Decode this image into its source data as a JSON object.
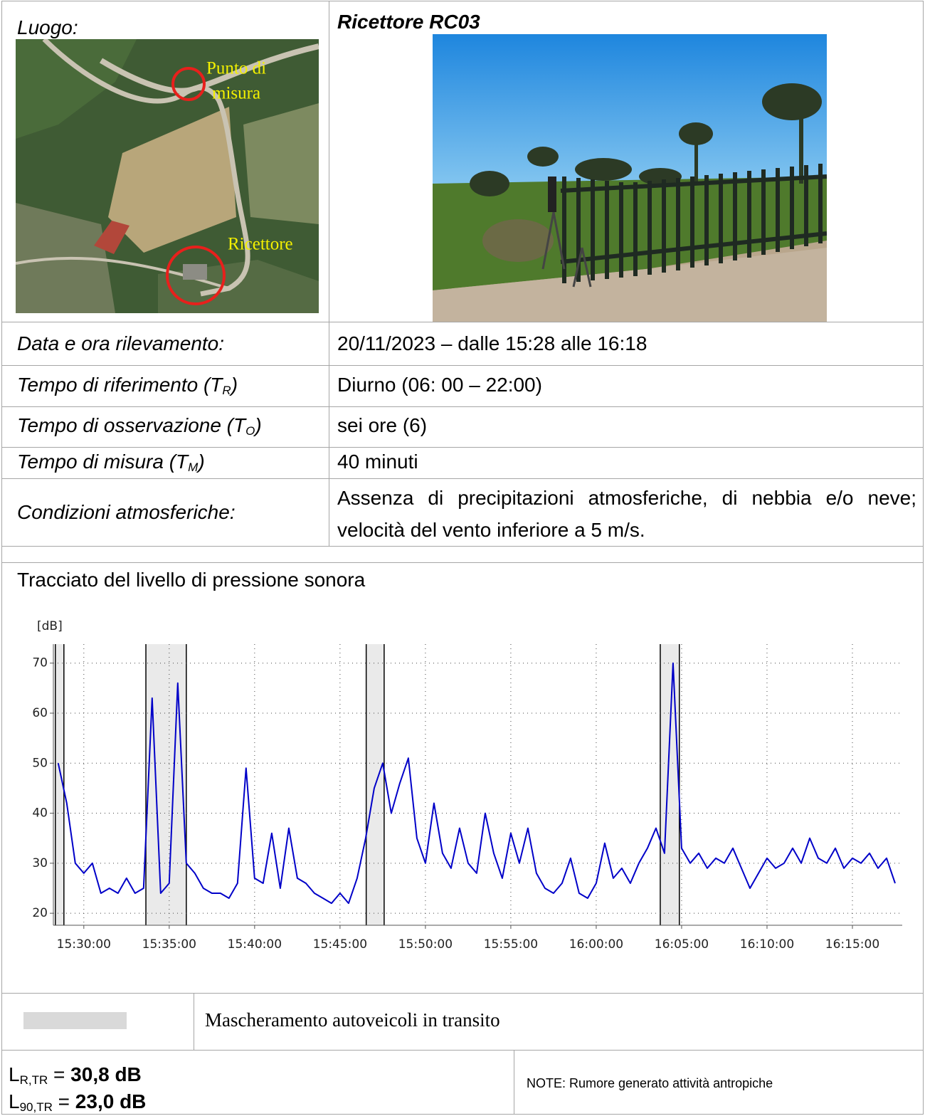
{
  "location": {
    "label": "Luogo:",
    "map_labels": {
      "measure_point": [
        "Punto di",
        "misura"
      ],
      "receiver": "Ricettore"
    }
  },
  "receiver": {
    "title": "Ricettore RC03"
  },
  "info_rows": [
    {
      "label": {
        "text": "Data e ora rilevamento:"
      },
      "value": "20/11/2023 – dalle 15:28 alle 16:18"
    },
    {
      "label": {
        "text": "Tempo di riferimento (T",
        "subscript": "R",
        "close": ")"
      },
      "value": "Diurno (06: 00 – 22:00)"
    },
    {
      "label": {
        "text": "Tempo di osservazione (T",
        "subscript": "O",
        "close": ")"
      },
      "value": "sei ore (6)"
    },
    {
      "label": {
        "text": "Tempo di misura (T",
        "subscript": "M",
        "close": ")"
      },
      "value": "40 minuti"
    },
    {
      "label": {
        "text": "Condizioni atmosferiche:"
      },
      "value": "Assenza di precipitazioni atmosferiche, di nebbia e/o neve; velocità del vento inferiore a 5 m/s."
    }
  ],
  "chart_heading": "Tracciato del livello di pressione sonora",
  "chart_data": {
    "type": "line",
    "y_label": "[dB]",
    "color": "#0000c8",
    "grid": true,
    "x": [
      55710,
      55740,
      55770,
      55800,
      55830,
      55860,
      55890,
      55920,
      55950,
      55980,
      56010,
      56040,
      56070,
      56100,
      56130,
      56160,
      56190,
      56220,
      56250,
      56280,
      56310,
      56340,
      56370,
      56400,
      56430,
      56460,
      56490,
      56520,
      56550,
      56580,
      56610,
      56640,
      56670,
      56700,
      56730,
      56760,
      56790,
      56820,
      56850,
      56880,
      56910,
      56940,
      56970,
      57000,
      57030,
      57060,
      57090,
      57120,
      57150,
      57180,
      57210,
      57240,
      57270,
      57300,
      57330,
      57360,
      57390,
      57420,
      57450,
      57480,
      57510,
      57540,
      57570,
      57600,
      57630,
      57660,
      57690,
      57720,
      57750,
      57780,
      57810,
      57840,
      57870,
      57900,
      57930,
      57960,
      57990,
      58020,
      58050,
      58080,
      58110,
      58140,
      58170,
      58200,
      58230,
      58260,
      58290,
      58320,
      58350,
      58380,
      58410,
      58440,
      58470,
      58500,
      58530,
      58560,
      58590,
      58620,
      58650
    ],
    "values": [
      50,
      42,
      30,
      28,
      30,
      24,
      25,
      24,
      27,
      24,
      25,
      63,
      24,
      26,
      66,
      30,
      28,
      25,
      24,
      24,
      23,
      26,
      49,
      27,
      26,
      36,
      25,
      37,
      27,
      26,
      24,
      23,
      22,
      24,
      22,
      27,
      35,
      45,
      50,
      40,
      46,
      51,
      35,
      30,
      42,
      32,
      29,
      37,
      30,
      28,
      40,
      32,
      27,
      36,
      30,
      37,
      28,
      25,
      24,
      26,
      31,
      24,
      23,
      26,
      34,
      27,
      29,
      26,
      30,
      33,
      37,
      32,
      70,
      33,
      30,
      32,
      29,
      31,
      30,
      33,
      29,
      25,
      28,
      31,
      29,
      30,
      33,
      30,
      35,
      31,
      30,
      33,
      29,
      31,
      30,
      32,
      29,
      31,
      26
    ],
    "xlim": [
      55693,
      58675
    ],
    "ylim": [
      17.6,
      73.8
    ],
    "xticks": [
      {
        "value": 55800,
        "label": "15:30:00"
      },
      {
        "value": 56100,
        "label": "15:35:00"
      },
      {
        "value": 56400,
        "label": "15:40:00"
      },
      {
        "value": 56700,
        "label": "15:45:00"
      },
      {
        "value": 57000,
        "label": "15:50:00"
      },
      {
        "value": 57300,
        "label": "15:55:00"
      },
      {
        "value": 57600,
        "label": "16:00:00"
      },
      {
        "value": 57900,
        "label": "16:05:00"
      },
      {
        "value": 58200,
        "label": "16:10:00"
      },
      {
        "value": 58500,
        "label": "16:15:00"
      }
    ],
    "yticks": [
      20,
      30,
      40,
      50,
      60,
      70
    ],
    "masks": [
      [
        55700,
        55730
      ],
      [
        56018,
        56160
      ],
      [
        56792,
        56855
      ],
      [
        57825,
        57892
      ]
    ],
    "mask_color": "#d9d9d9",
    "mask_label": "Mascheramento autoveicoli in transito"
  },
  "results": [
    {
      "symbol": "L",
      "subscript": "R,TR",
      "sign": "=",
      "value": "30,8 dB"
    },
    {
      "symbol": "L",
      "subscript": "90,TR",
      "sign": "=",
      "value": "23,0 dB"
    }
  ],
  "note": "NOTE: Rumore generato attività antropiche"
}
